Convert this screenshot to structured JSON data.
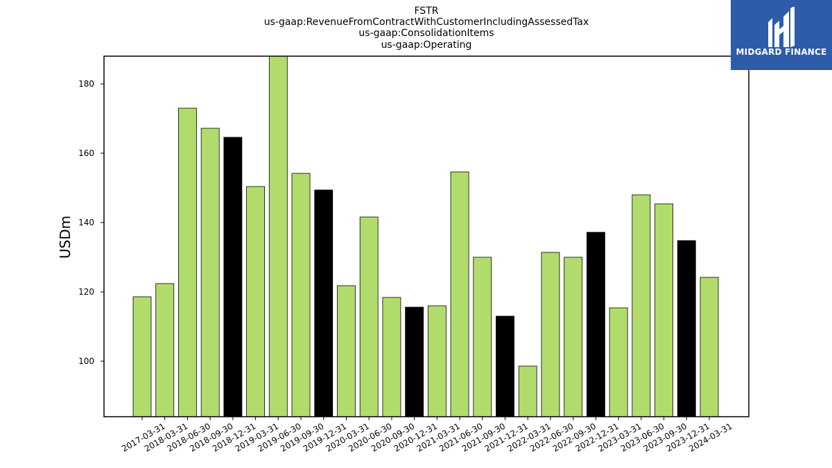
{
  "colors": {
    "bar_default": "#b1dc6b",
    "bar_highlight": "#000000",
    "logo_bg": "#2f5bab"
  },
  "logo": {
    "text": "MIDGARD FINANCE",
    "icon": "midgard-logo-icon"
  },
  "chart_data": {
    "type": "bar",
    "title_lines": [
      "FSTR",
      "us-gaap:RevenueFromContractWithCustomerIncludingAssessedTax",
      "us-gaap:ConsolidationItems",
      "us-gaap:Operating"
    ],
    "xlabel": "",
    "ylabel": "USDm",
    "ylim": [
      84,
      188
    ],
    "yticks": [
      100,
      120,
      140,
      160,
      180
    ],
    "grid": false,
    "legend": "none",
    "categories": [
      "2017-03-31",
      "2018-03-31",
      "2018-06-30",
      "2018-09-30",
      "2018-12-31",
      "2019-03-31",
      "2019-06-30",
      "2019-09-30",
      "2019-12-31",
      "2020-03-31",
      "2020-06-30",
      "2020-09-30",
      "2020-12-31",
      "2021-03-31",
      "2021-06-30",
      "2021-09-30",
      "2021-12-31",
      "2022-03-31",
      "2022-06-30",
      "2022-09-30",
      "2022-12-31",
      "2023-03-31",
      "2023-06-30",
      "2023-09-30",
      "2023-12-31",
      "2024-03-31"
    ],
    "values": [
      118.6,
      122.4,
      173.0,
      167.2,
      164.6,
      150.4,
      188.0,
      154.2,
      149.4,
      121.8,
      141.6,
      118.4,
      115.6,
      116.0,
      154.6,
      130.0,
      113.0,
      98.6,
      131.4,
      130.0,
      137.2,
      115.4,
      148.0,
      145.4,
      134.8,
      124.2
    ],
    "highlight": [
      false,
      false,
      false,
      false,
      true,
      false,
      false,
      false,
      true,
      false,
      false,
      false,
      true,
      false,
      false,
      false,
      true,
      false,
      false,
      false,
      true,
      false,
      false,
      false,
      true,
      false
    ]
  }
}
